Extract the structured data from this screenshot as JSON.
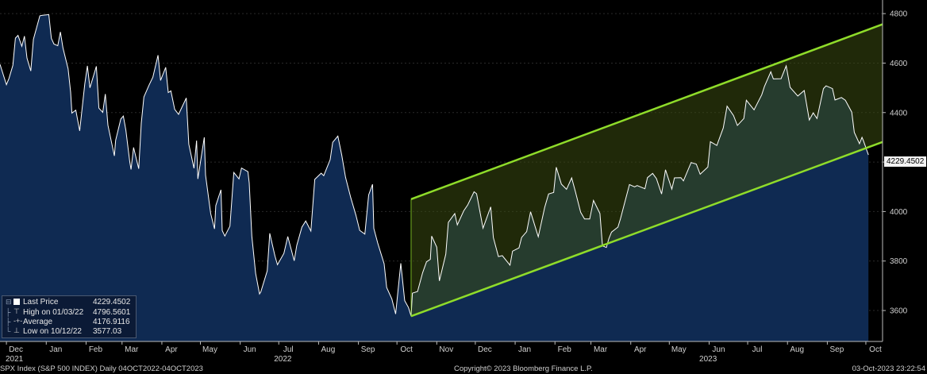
{
  "chart_data": {
    "type": "area",
    "yticks": [
      3600,
      3800,
      4000,
      4200,
      4400,
      4600,
      4800
    ],
    "ylim": [
      3475,
      4855
    ],
    "month_ticks": [
      {
        "label": "Dec",
        "date": "2021-12-01"
      },
      {
        "label": "Jan",
        "date": "2022-01-01"
      },
      {
        "label": "Feb",
        "date": "2022-02-01"
      },
      {
        "label": "Mar",
        "date": "2022-03-01"
      },
      {
        "label": "Apr",
        "date": "2022-04-01"
      },
      {
        "label": "May",
        "date": "2022-05-01"
      },
      {
        "label": "Jun",
        "date": "2022-06-01"
      },
      {
        "label": "Jul",
        "date": "2022-07-01"
      },
      {
        "label": "Aug",
        "date": "2022-08-01"
      },
      {
        "label": "Sep",
        "date": "2022-09-01"
      },
      {
        "label": "Oct",
        "date": "2022-10-01"
      },
      {
        "label": "Nov",
        "date": "2022-11-01"
      },
      {
        "label": "Dec",
        "date": "2022-12-01"
      },
      {
        "label": "Jan",
        "date": "2023-01-01"
      },
      {
        "label": "Feb",
        "date": "2023-02-01"
      },
      {
        "label": "Mar",
        "date": "2023-03-01"
      },
      {
        "label": "Apr",
        "date": "2023-04-01"
      },
      {
        "label": "May",
        "date": "2023-05-01"
      },
      {
        "label": "Jun",
        "date": "2023-06-01"
      },
      {
        "label": "Jul",
        "date": "2023-07-01"
      },
      {
        "label": "Aug",
        "date": "2023-08-01"
      },
      {
        "label": "Sep",
        "date": "2023-09-01"
      },
      {
        "label": "Oct",
        "date": "2023-10-01"
      }
    ],
    "year_labels": [
      {
        "label": "2021",
        "date": "2021-12-01"
      },
      {
        "label": "2022",
        "date": "2022-06-28"
      },
      {
        "label": "2023",
        "date": "2023-05-25"
      }
    ],
    "xlim": [
      "2021-11-26",
      "2023-10-14"
    ],
    "series": [
      {
        "points": [
          [
            "2021-11-26",
            4595
          ],
          [
            "2021-12-01",
            4513
          ],
          [
            "2021-12-03",
            4538
          ],
          [
            "2021-12-06",
            4591
          ],
          [
            "2021-12-08",
            4701
          ],
          [
            "2021-12-10",
            4712
          ],
          [
            "2021-12-13",
            4668
          ],
          [
            "2021-12-15",
            4709
          ],
          [
            "2021-12-17",
            4620
          ],
          [
            "2021-12-20",
            4568
          ],
          [
            "2021-12-22",
            4696
          ],
          [
            "2021-12-27",
            4791
          ],
          [
            "2021-12-29",
            4793
          ],
          [
            "2022-01-03",
            4796
          ],
          [
            "2022-01-05",
            4700
          ],
          [
            "2022-01-07",
            4677
          ],
          [
            "2022-01-10",
            4670
          ],
          [
            "2022-01-12",
            4726
          ],
          [
            "2022-01-14",
            4662
          ],
          [
            "2022-01-18",
            4577
          ],
          [
            "2022-01-20",
            4482
          ],
          [
            "2022-01-21",
            4398
          ],
          [
            "2022-01-24",
            4410
          ],
          [
            "2022-01-27",
            4326
          ],
          [
            "2022-01-31",
            4515
          ],
          [
            "2022-02-02",
            4589
          ],
          [
            "2022-02-04",
            4500
          ],
          [
            "2022-02-09",
            4587
          ],
          [
            "2022-02-11",
            4418
          ],
          [
            "2022-02-14",
            4401
          ],
          [
            "2022-02-16",
            4475
          ],
          [
            "2022-02-18",
            4349
          ],
          [
            "2022-02-23",
            4225
          ],
          [
            "2022-02-24",
            4288
          ],
          [
            "2022-02-28",
            4374
          ],
          [
            "2022-03-02",
            4386
          ],
          [
            "2022-03-04",
            4329
          ],
          [
            "2022-03-07",
            4201
          ],
          [
            "2022-03-08",
            4170
          ],
          [
            "2022-03-10",
            4259
          ],
          [
            "2022-03-14",
            4173
          ],
          [
            "2022-03-16",
            4357
          ],
          [
            "2022-03-18",
            4463
          ],
          [
            "2022-03-22",
            4511
          ],
          [
            "2022-03-25",
            4543
          ],
          [
            "2022-03-29",
            4632
          ],
          [
            "2022-03-31",
            4530
          ],
          [
            "2022-04-04",
            4583
          ],
          [
            "2022-04-06",
            4481
          ],
          [
            "2022-04-08",
            4488
          ],
          [
            "2022-04-11",
            4413
          ],
          [
            "2022-04-14",
            4393
          ],
          [
            "2022-04-20",
            4459
          ],
          [
            "2022-04-22",
            4272
          ],
          [
            "2022-04-26",
            4175
          ],
          [
            "2022-04-28",
            4287
          ],
          [
            "2022-04-29",
            4132
          ],
          [
            "2022-05-04",
            4300
          ],
          [
            "2022-05-05",
            4147
          ],
          [
            "2022-05-09",
            3991
          ],
          [
            "2022-05-12",
            3930
          ],
          [
            "2022-05-13",
            4024
          ],
          [
            "2022-05-17",
            4088
          ],
          [
            "2022-05-18",
            3923
          ],
          [
            "2022-05-20",
            3901
          ],
          [
            "2022-05-24",
            3941
          ],
          [
            "2022-05-27",
            4158
          ],
          [
            "2022-05-31",
            4132
          ],
          [
            "2022-06-02",
            4176
          ],
          [
            "2022-06-07",
            4161
          ],
          [
            "2022-06-08",
            4116
          ],
          [
            "2022-06-10",
            3901
          ],
          [
            "2022-06-13",
            3750
          ],
          [
            "2022-06-16",
            3667
          ],
          [
            "2022-06-17",
            3675
          ],
          [
            "2022-06-22",
            3760
          ],
          [
            "2022-06-24",
            3912
          ],
          [
            "2022-06-28",
            3821
          ],
          [
            "2022-06-30",
            3785
          ],
          [
            "2022-07-05",
            3831
          ],
          [
            "2022-07-08",
            3899
          ],
          [
            "2022-07-13",
            3801
          ],
          [
            "2022-07-15",
            3863
          ],
          [
            "2022-07-19",
            3937
          ],
          [
            "2022-07-22",
            3962
          ],
          [
            "2022-07-26",
            3921
          ],
          [
            "2022-07-29",
            4130
          ],
          [
            "2022-08-03",
            4155
          ],
          [
            "2022-08-05",
            4145
          ],
          [
            "2022-08-10",
            4210
          ],
          [
            "2022-08-12",
            4280
          ],
          [
            "2022-08-16",
            4305
          ],
          [
            "2022-08-19",
            4228
          ],
          [
            "2022-08-22",
            4138
          ],
          [
            "2022-08-26",
            4057
          ],
          [
            "2022-08-30",
            3986
          ],
          [
            "2022-09-02",
            3924
          ],
          [
            "2022-09-06",
            3909
          ],
          [
            "2022-09-09",
            4067
          ],
          [
            "2022-09-12",
            4110
          ],
          [
            "2022-09-13",
            3932
          ],
          [
            "2022-09-16",
            3873
          ],
          [
            "2022-09-21",
            3789
          ],
          [
            "2022-09-23",
            3693
          ],
          [
            "2022-09-27",
            3647
          ],
          [
            "2022-09-30",
            3586
          ],
          [
            "2022-10-04",
            3791
          ],
          [
            "2022-10-07",
            3640
          ],
          [
            "2022-10-10",
            3612
          ],
          [
            "2022-10-12",
            3577
          ],
          [
            "2022-10-13",
            3670
          ],
          [
            "2022-10-17",
            3677
          ],
          [
            "2022-10-21",
            3753
          ],
          [
            "2022-10-24",
            3797
          ],
          [
            "2022-10-27",
            3807
          ],
          [
            "2022-10-28",
            3901
          ],
          [
            "2022-11-01",
            3856
          ],
          [
            "2022-11-03",
            3720
          ],
          [
            "2022-11-08",
            3828
          ],
          [
            "2022-11-10",
            3956
          ],
          [
            "2022-11-15",
            3992
          ],
          [
            "2022-11-17",
            3946
          ],
          [
            "2022-11-22",
            4003
          ],
          [
            "2022-11-25",
            4026
          ],
          [
            "2022-11-30",
            4080
          ],
          [
            "2022-12-02",
            4072
          ],
          [
            "2022-12-07",
            3933
          ],
          [
            "2022-12-13",
            4019
          ],
          [
            "2022-12-15",
            3895
          ],
          [
            "2022-12-19",
            3818
          ],
          [
            "2022-12-22",
            3822
          ],
          [
            "2022-12-28",
            3783
          ],
          [
            "2022-12-30",
            3840
          ],
          [
            "2023-01-04",
            3853
          ],
          [
            "2023-01-06",
            3895
          ],
          [
            "2023-01-10",
            3919
          ],
          [
            "2023-01-13",
            3999
          ],
          [
            "2023-01-19",
            3898
          ],
          [
            "2023-01-24",
            4017
          ],
          [
            "2023-01-27",
            4071
          ],
          [
            "2023-01-31",
            4077
          ],
          [
            "2023-02-02",
            4179
          ],
          [
            "2023-02-06",
            4111
          ],
          [
            "2023-02-10",
            4090
          ],
          [
            "2023-02-14",
            4136
          ],
          [
            "2023-02-17",
            4079
          ],
          [
            "2023-02-21",
            3997
          ],
          [
            "2023-02-24",
            3970
          ],
          [
            "2023-02-28",
            3970
          ],
          [
            "2023-03-03",
            4045
          ],
          [
            "2023-03-08",
            3992
          ],
          [
            "2023-03-10",
            3861
          ],
          [
            "2023-03-13",
            3855
          ],
          [
            "2023-03-15",
            3891
          ],
          [
            "2023-03-17",
            3917
          ],
          [
            "2023-03-22",
            3937
          ],
          [
            "2023-03-24",
            3971
          ],
          [
            "2023-03-31",
            4109
          ],
          [
            "2023-04-04",
            4100
          ],
          [
            "2023-04-06",
            4105
          ],
          [
            "2023-04-12",
            4092
          ],
          [
            "2023-04-14",
            4137
          ],
          [
            "2023-04-18",
            4154
          ],
          [
            "2023-04-21",
            4133
          ],
          [
            "2023-04-25",
            4071
          ],
          [
            "2023-04-28",
            4169
          ],
          [
            "2023-05-03",
            4091
          ],
          [
            "2023-05-05",
            4136
          ],
          [
            "2023-05-10",
            4137
          ],
          [
            "2023-05-12",
            4124
          ],
          [
            "2023-05-18",
            4198
          ],
          [
            "2023-05-22",
            4192
          ],
          [
            "2023-05-25",
            4151
          ],
          [
            "2023-05-31",
            4180
          ],
          [
            "2023-06-02",
            4282
          ],
          [
            "2023-06-07",
            4267
          ],
          [
            "2023-06-12",
            4338
          ],
          [
            "2023-06-15",
            4426
          ],
          [
            "2023-06-20",
            4388
          ],
          [
            "2023-06-23",
            4348
          ],
          [
            "2023-06-28",
            4376
          ],
          [
            "2023-06-30",
            4450
          ],
          [
            "2023-07-06",
            4411
          ],
          [
            "2023-07-12",
            4472
          ],
          [
            "2023-07-14",
            4505
          ],
          [
            "2023-07-19",
            4565
          ],
          [
            "2023-07-21",
            4536
          ],
          [
            "2023-07-27",
            4537
          ],
          [
            "2023-07-31",
            4589
          ],
          [
            "2023-08-03",
            4502
          ],
          [
            "2023-08-09",
            4467
          ],
          [
            "2023-08-14",
            4489
          ],
          [
            "2023-08-18",
            4370
          ],
          [
            "2023-08-21",
            4399
          ],
          [
            "2023-08-24",
            4376
          ],
          [
            "2023-08-29",
            4497
          ],
          [
            "2023-08-31",
            4508
          ],
          [
            "2023-09-05",
            4497
          ],
          [
            "2023-09-07",
            4451
          ],
          [
            "2023-09-12",
            4461
          ],
          [
            "2023-09-15",
            4450
          ],
          [
            "2023-09-20",
            4402
          ],
          [
            "2023-09-22",
            4320
          ],
          [
            "2023-09-26",
            4274
          ],
          [
            "2023-09-28",
            4300
          ],
          [
            "2023-09-29",
            4288
          ],
          [
            "2023-10-03",
            4229
          ]
        ]
      }
    ],
    "channel": {
      "start": "2022-10-12",
      "end": "2023-10-14",
      "lower": [
        3577,
        4281
      ],
      "upper": [
        4050,
        4757
      ]
    },
    "last_price_label": "4229.4502",
    "legend": [
      {
        "label": "Last Price",
        "value": "4229.4502",
        "marker": "square"
      },
      {
        "label": "High on 01/03/22",
        "value": "4796.5601",
        "marker": "high"
      },
      {
        "label": "Average",
        "value": "4176.9116",
        "marker": "avg"
      },
      {
        "label": "Low on 10/12/22",
        "value": "3577.03",
        "marker": "low"
      }
    ],
    "colors": {
      "line": "#ffffff",
      "area": "#0f2a52",
      "channel_line": "#8fdc2a",
      "channel_fill": "#3a4a10"
    }
  },
  "footer": {
    "left": "SPX Index (S&P 500 INDEX)  Daily 04OCT2022-04OCT2023",
    "center": "Copyright© 2023 Bloomberg Finance L.P.",
    "right": "03-Oct-2023 23:22:54"
  }
}
